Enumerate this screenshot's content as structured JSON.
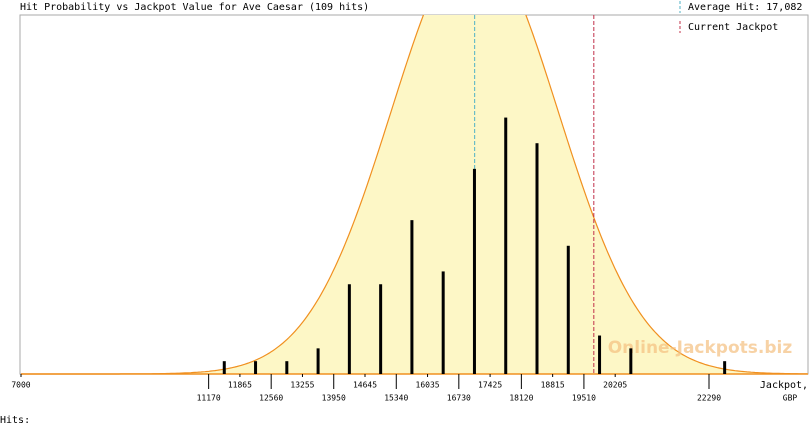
{
  "chart_data": {
    "type": "bar",
    "title": "Hit Probability vs Jackpot Value for Ave Caesar (109 hits)",
    "x": [
      11517.5,
      12212.5,
      12907.5,
      13602.5,
      14297.5,
      14992.5,
      15687.5,
      16382.5,
      17077.5,
      17772.5,
      18467.5,
      19162.5,
      19857.5,
      20552.5,
      22637.5
    ],
    "values": [
      1,
      1,
      1,
      2,
      7,
      7,
      12,
      8,
      16,
      20,
      18,
      10,
      3,
      2,
      1
    ],
    "color": "#000000",
    "xlim": [
      7000,
      24490
    ],
    "ylim": [
      0,
      28
    ],
    "xticks": [
      7000,
      11170,
      11865,
      12560,
      13255,
      13950,
      14645,
      15340,
      16035,
      16730,
      17425,
      18120,
      18815,
      19510,
      20205,
      22290
    ],
    "xlabel": [
      "Jackpot,",
      "GBP"
    ],
    "average_hit": {
      "value": 17082,
      "label": "Average Hit: 17,082",
      "color": "#4fb0c6"
    },
    "current_jackpot": {
      "value": 19730,
      "label": "Current Jackpot",
      "color": "#c0304a"
    },
    "normal_fit": {
      "mean": 17082,
      "sd": 1855,
      "peak": 33.8,
      "color": "#f09020",
      "fill": "#fdf7c6"
    },
    "hits_label": "Hits:",
    "watermark": "Online-Jackpots.biz"
  }
}
